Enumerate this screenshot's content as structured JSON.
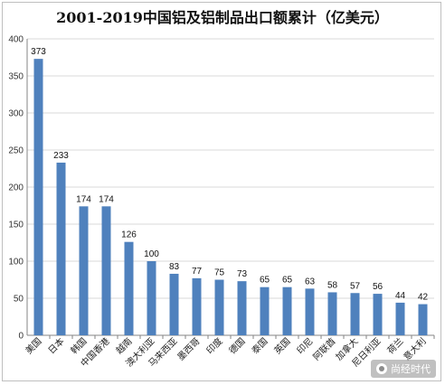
{
  "chart_data": {
    "type": "bar",
    "title": "2001-2019中国铝及铝制品出口额累计（亿美元）",
    "categories": [
      "美国",
      "日本",
      "韩国",
      "中国香港",
      "越南",
      "澳大利亚",
      "马来西亚",
      "墨西哥",
      "印度",
      "德国",
      "泰国",
      "英国",
      "印尼",
      "阿联酋",
      "加拿大",
      "尼日利亚",
      "荷兰",
      "意大利"
    ],
    "values": [
      373,
      233,
      174,
      174,
      126,
      100,
      83,
      77,
      75,
      73,
      65,
      65,
      63,
      58,
      57,
      56,
      44,
      42
    ],
    "ylim": [
      0,
      400
    ],
    "yticks": [
      0,
      50,
      100,
      150,
      200,
      250,
      300,
      350,
      400
    ],
    "grid": true,
    "bar_color": "#4f81bd",
    "grid_color": "#d9d9d9"
  },
  "watermark": {
    "text": "尚经时代",
    "icon": "wechat-icon"
  }
}
